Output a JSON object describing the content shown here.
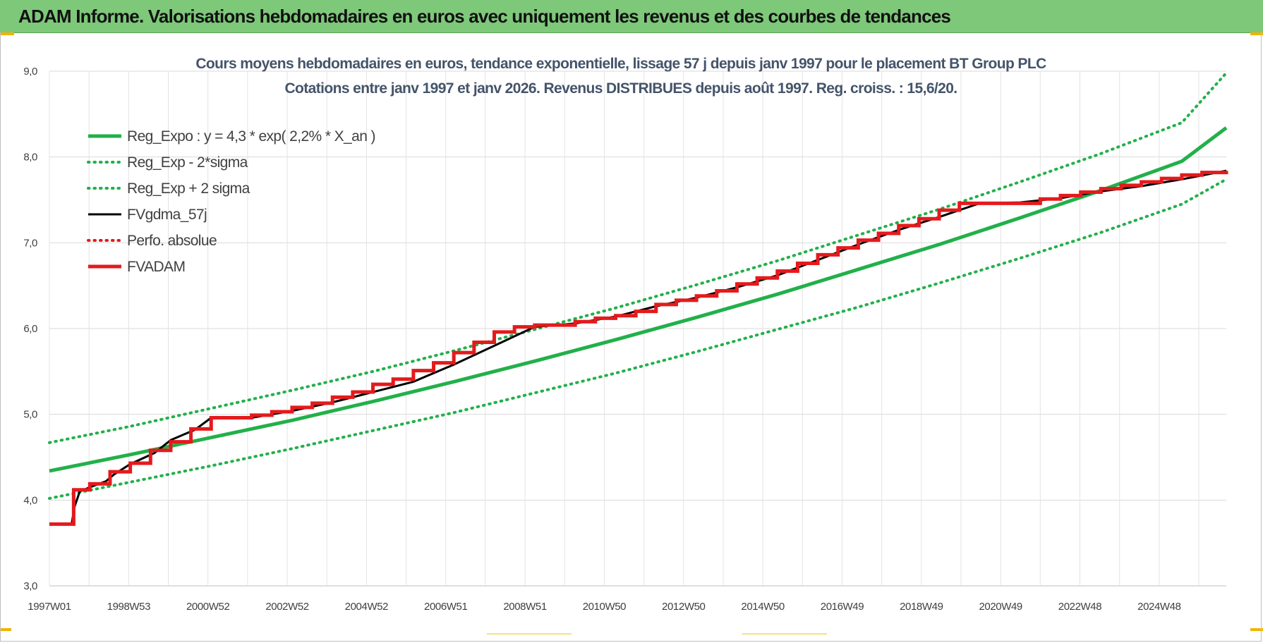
{
  "header": {
    "title": "ADAM Informe. Valorisations hebdomadaires en euros avec uniquement les revenus et des courbes de tendances",
    "background": "#7ec87a"
  },
  "chart_data": {
    "type": "line",
    "title_line1": "Cours moyens hebdomadaires en euros, tendance exponentielle, lissage 57 j depuis janv 1997  pour le placement BT Group PLC",
    "title_line2": "Cotations entre janv 1997 et janv 2026. Revenus DISTRIBUES depuis août 1997. Reg. croiss. : 15,6/20.",
    "xlabel": "",
    "ylabel": "",
    "x_tick_labels": [
      "1997W01",
      "1998W53",
      "2000W52",
      "2002W52",
      "2004W52",
      "2006W51",
      "2008W51",
      "2010W50",
      "2012W50",
      "2014W50",
      "2016W49",
      "2018W49",
      "2020W49",
      "2022W48",
      "2024W48"
    ],
    "x_range_years": [
      1997.0,
      2026.1
    ],
    "y_tick_labels": [
      "3,0",
      "4,0",
      "5,0",
      "6,0",
      "7,0",
      "8,0",
      "9,0"
    ],
    "ylim": [
      3.0,
      9.0
    ],
    "grid": true,
    "legend_position": "top-left",
    "series": [
      {
        "name": "Reg_Expo : y = 4,3 * exp( 2,2% *  X_an )",
        "color": "#22b04a",
        "style": "solid",
        "x": [
          1997.0,
          1999.0,
          2001.0,
          2003.0,
          2005.0,
          2007.0,
          2009.0,
          2011.0,
          2013.0,
          2015.0,
          2017.0,
          2019.0,
          2021.0,
          2023.0,
          2025.0,
          2026.1
        ],
        "y": [
          4.34,
          4.53,
          4.73,
          4.93,
          5.15,
          5.38,
          5.62,
          5.87,
          6.13,
          6.4,
          6.69,
          6.98,
          7.29,
          7.61,
          7.95,
          8.34
        ]
      },
      {
        "name": "Reg_Exp - 2*sigma",
        "color": "#22b04a",
        "style": "dotted",
        "x": [
          1997.0,
          1999.0,
          2001.0,
          2003.0,
          2005.0,
          2007.0,
          2009.0,
          2011.0,
          2013.0,
          2015.0,
          2017.0,
          2019.0,
          2021.0,
          2023.0,
          2025.0,
          2026.1
        ],
        "y": [
          4.02,
          4.21,
          4.4,
          4.6,
          4.81,
          5.02,
          5.25,
          5.48,
          5.73,
          5.99,
          6.25,
          6.53,
          6.82,
          7.12,
          7.45,
          7.74
        ]
      },
      {
        "name": "Reg_Exp + 2 sigma",
        "color": "#22b04a",
        "style": "dotted",
        "x": [
          1997.0,
          1999.0,
          2001.0,
          2003.0,
          2005.0,
          2007.0,
          2009.0,
          2011.0,
          2013.0,
          2015.0,
          2017.0,
          2019.0,
          2021.0,
          2023.0,
          2025.0,
          2026.1
        ],
        "y": [
          4.67,
          4.86,
          5.07,
          5.28,
          5.5,
          5.74,
          5.99,
          6.24,
          6.51,
          6.79,
          7.09,
          7.39,
          7.71,
          8.04,
          8.4,
          8.98
        ]
      },
      {
        "name": "FVgdma_57j",
        "color": "#000000",
        "style": "solid",
        "x": [
          1997.0,
          1997.55,
          1997.62,
          1997.75,
          1998.0,
          1998.4,
          1998.6,
          1999.0,
          1999.6,
          2000.0,
          2000.6,
          2001.0,
          2002.0,
          2003.0,
          2004.0,
          2005.0,
          2006.0,
          2007.0,
          2008.0,
          2009.0,
          2010.0,
          2011.0,
          2012.0,
          2013.0,
          2014.0,
          2015.0,
          2016.0,
          2017.0,
          2018.0,
          2019.0,
          2020.0,
          2021.0,
          2022.0,
          2023.0,
          2024.0,
          2025.0,
          2026.1
        ],
        "y": [
          3.72,
          3.72,
          3.92,
          4.1,
          4.15,
          4.22,
          4.3,
          4.42,
          4.55,
          4.7,
          4.82,
          4.96,
          4.96,
          5.04,
          5.14,
          5.26,
          5.38,
          5.58,
          5.8,
          6.02,
          6.06,
          6.14,
          6.26,
          6.36,
          6.48,
          6.62,
          6.8,
          6.98,
          7.15,
          7.3,
          7.46,
          7.47,
          7.52,
          7.6,
          7.66,
          7.74,
          7.84
        ]
      },
      {
        "name": "Perfo. absolue",
        "color": "#e41a1c",
        "style": "dotted",
        "x": [],
        "y": []
      },
      {
        "name": "FVADAM",
        "color": "#e41a1c",
        "style": "step",
        "x": [
          1997.0,
          1997.6,
          1998.0,
          1998.5,
          1999.0,
          1999.5,
          2000.0,
          2000.5,
          2001.0,
          2002.0,
          2002.5,
          2003.0,
          2003.5,
          2004.0,
          2004.5,
          2005.0,
          2005.5,
          2006.0,
          2006.5,
          2007.0,
          2007.5,
          2008.0,
          2008.5,
          2009.0,
          2010.0,
          2010.5,
          2011.0,
          2011.5,
          2012.0,
          2012.5,
          2013.0,
          2013.5,
          2014.0,
          2014.5,
          2015.0,
          2015.5,
          2016.0,
          2016.5,
          2017.0,
          2017.5,
          2018.0,
          2018.5,
          2019.0,
          2019.5,
          2020.0,
          2021.0,
          2021.5,
          2022.0,
          2022.5,
          2023.0,
          2023.5,
          2024.0,
          2024.5,
          2025.0,
          2025.5,
          2026.1
        ],
        "y": [
          3.72,
          4.12,
          4.19,
          4.33,
          4.43,
          4.58,
          4.68,
          4.83,
          4.96,
          4.99,
          5.03,
          5.08,
          5.13,
          5.2,
          5.26,
          5.35,
          5.41,
          5.51,
          5.6,
          5.72,
          5.84,
          5.96,
          6.02,
          6.04,
          6.08,
          6.12,
          6.15,
          6.2,
          6.28,
          6.33,
          6.38,
          6.44,
          6.52,
          6.59,
          6.67,
          6.76,
          6.86,
          6.94,
          7.03,
          7.11,
          7.2,
          7.28,
          7.38,
          7.46,
          7.46,
          7.46,
          7.51,
          7.55,
          7.59,
          7.63,
          7.67,
          7.71,
          7.75,
          7.79,
          7.82,
          7.84
        ]
      }
    ]
  }
}
